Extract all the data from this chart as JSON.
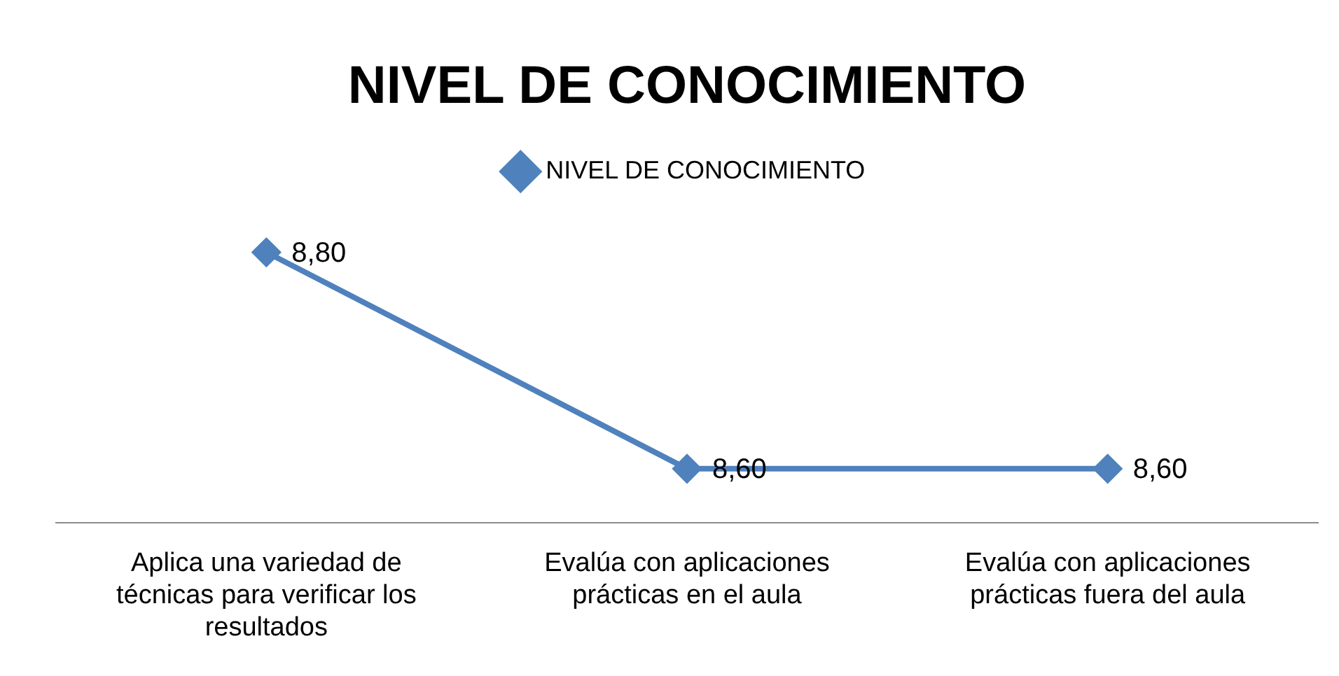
{
  "chart_data": {
    "type": "line",
    "title": "NIVEL DE CONOCIMIENTO",
    "categories": [
      "Aplica una variedad de técnicas para verificar los resultados",
      "Evalúa con aplicaciones prácticas en el aula",
      "Evalúa con aplicaciones prácticas fuera del aula"
    ],
    "series": [
      {
        "name": "NIVEL DE CONOCIMIENTO",
        "color": "#4f81bd",
        "values": [
          8.8,
          8.6,
          8.6
        ],
        "value_labels": [
          "8,80",
          "8,60",
          "8,60"
        ]
      }
    ],
    "tick_labels": "x",
    "grid": false,
    "legend": "top",
    "marker": "diamond",
    "line_style": "solid"
  }
}
